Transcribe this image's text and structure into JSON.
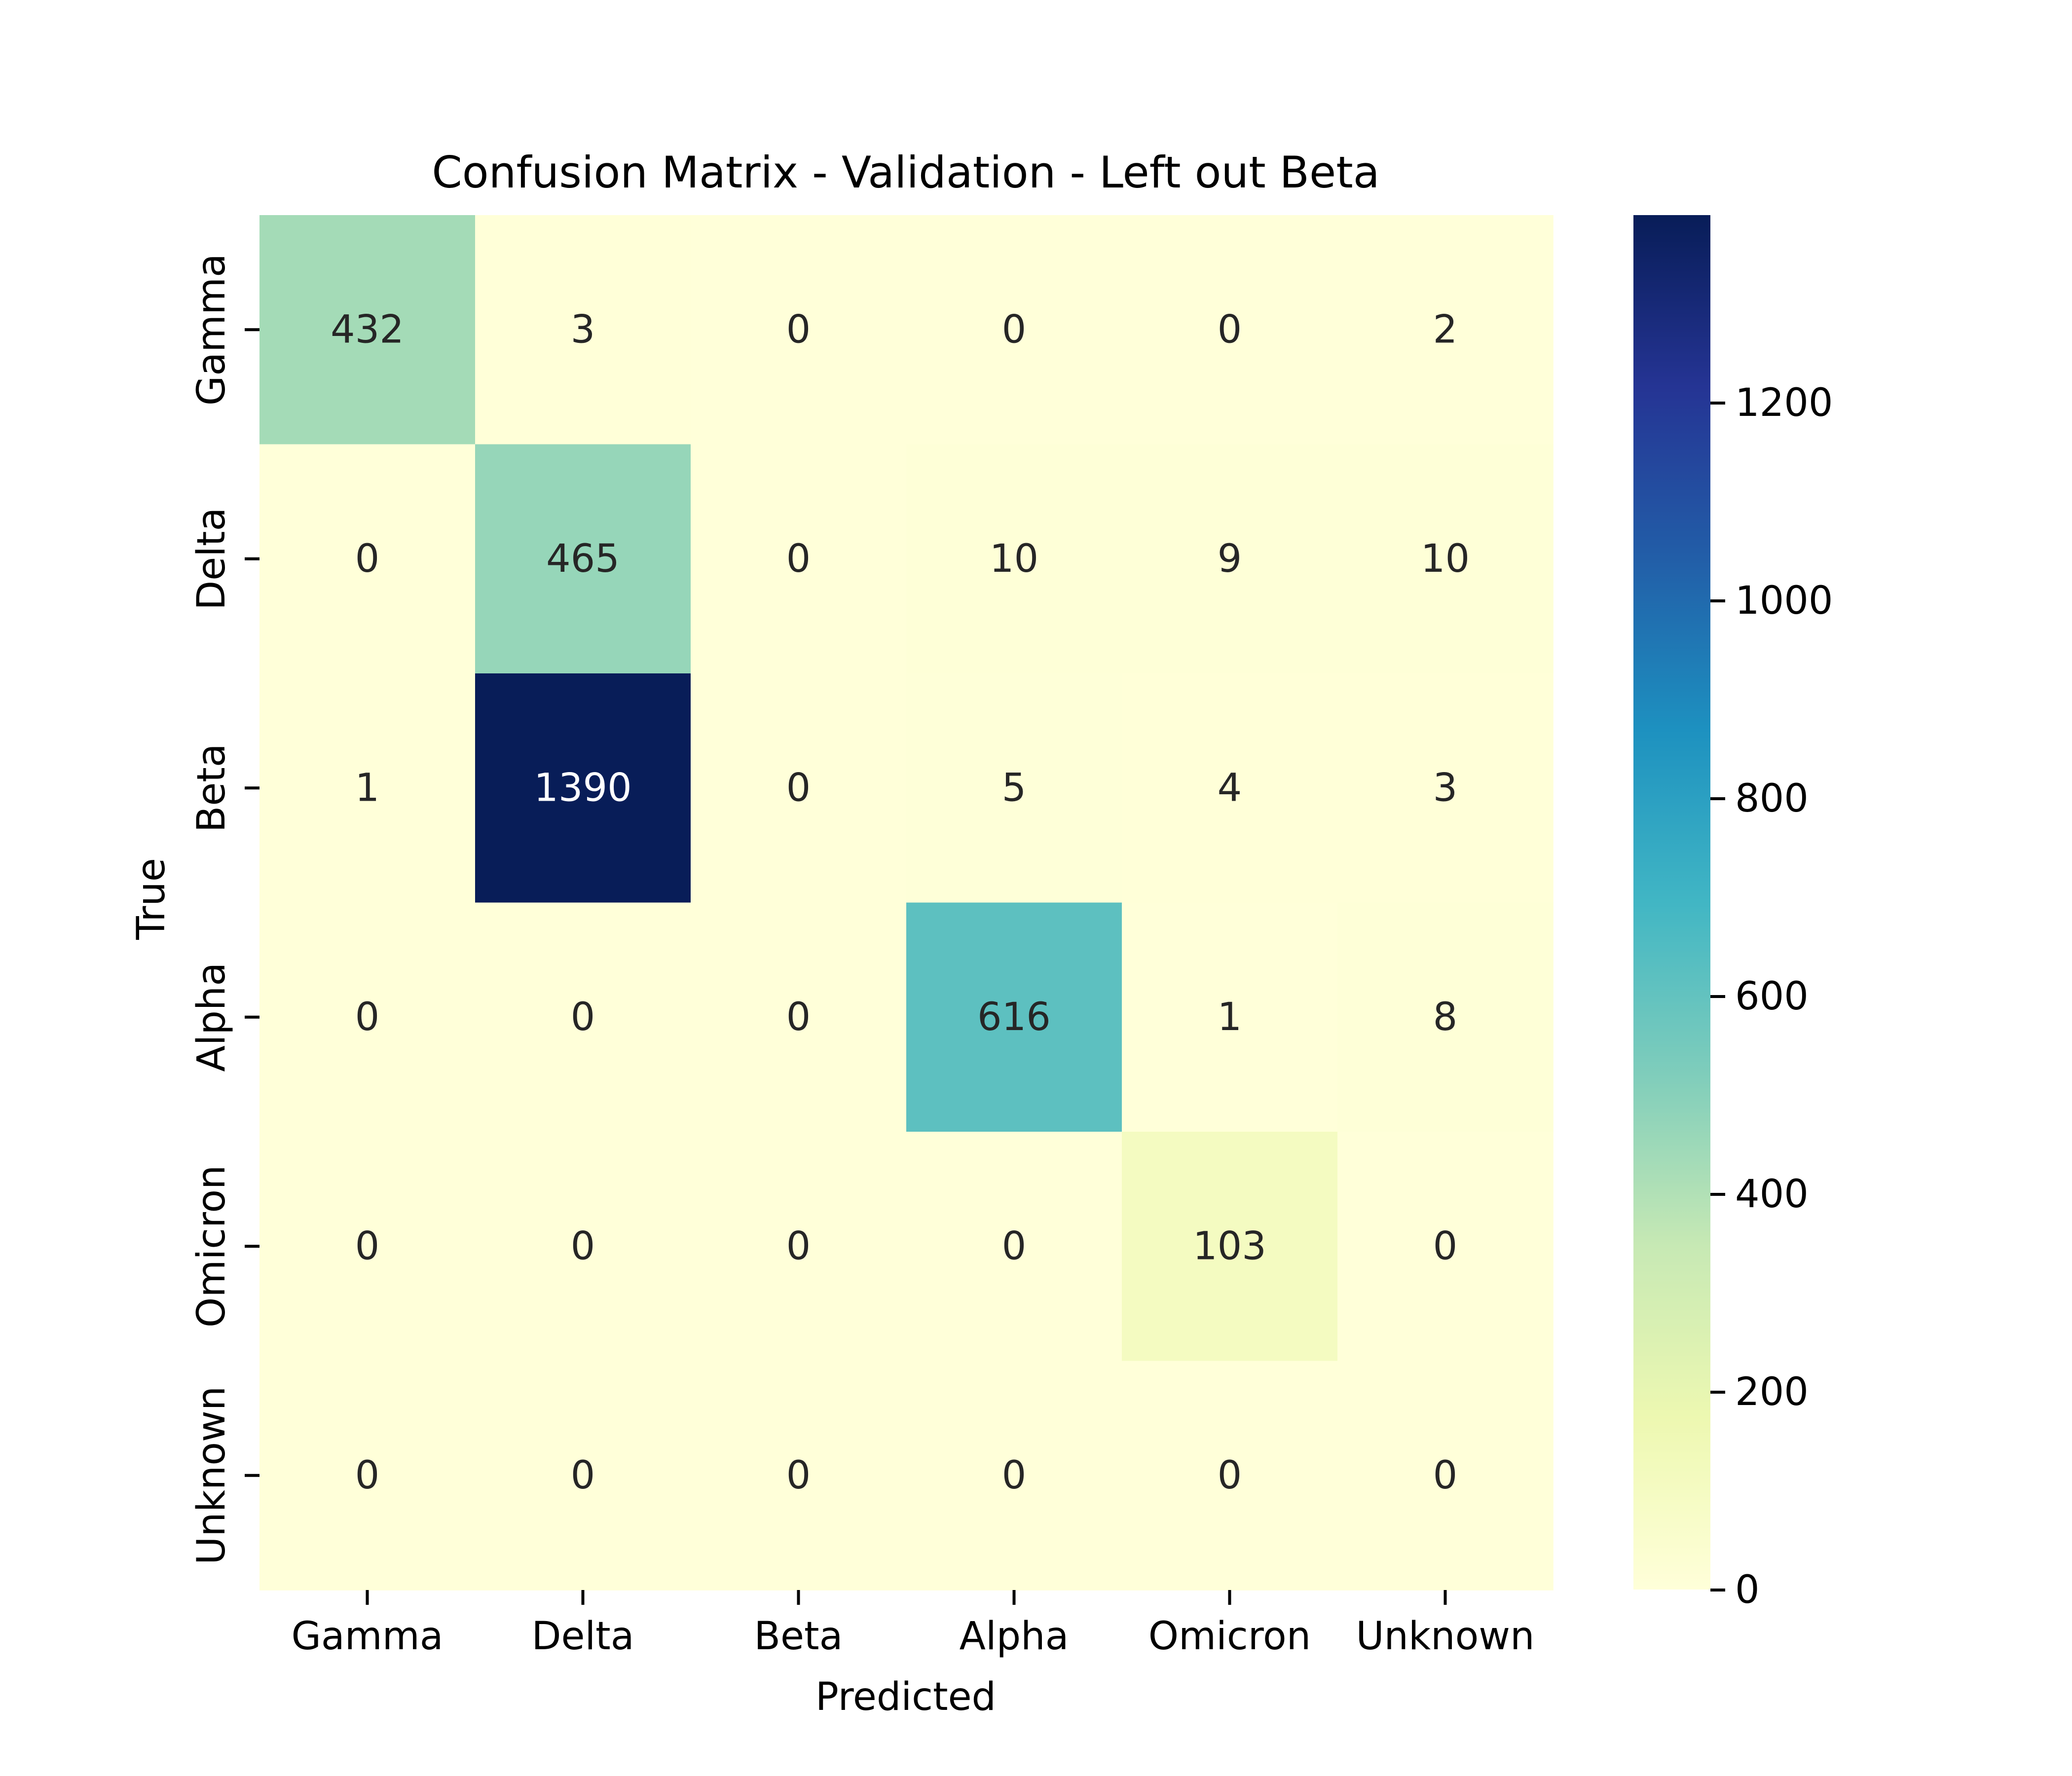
{
  "chart_data": {
    "type": "heatmap",
    "title": "Confusion Matrix - Validation - Left out Beta",
    "xlabel": "Predicted",
    "ylabel": "True",
    "x_categories": [
      "Gamma",
      "Delta",
      "Beta",
      "Alpha",
      "Omicron",
      "Unknown"
    ],
    "y_categories": [
      "Gamma",
      "Delta",
      "Beta",
      "Alpha",
      "Omicron",
      "Unknown"
    ],
    "values": [
      [
        432,
        3,
        0,
        0,
        0,
        2
      ],
      [
        0,
        465,
        0,
        10,
        9,
        10
      ],
      [
        1,
        1390,
        0,
        5,
        4,
        3
      ],
      [
        0,
        0,
        0,
        616,
        1,
        8
      ],
      [
        0,
        0,
        0,
        0,
        103,
        0
      ],
      [
        0,
        0,
        0,
        0,
        0,
        0
      ]
    ],
    "colormap": "YlGnBu",
    "colorbar": {
      "vmin": 0,
      "vmax": 1390,
      "ticks": [
        0,
        200,
        400,
        600,
        800,
        1000,
        1200
      ],
      "tick_labels": [
        "0",
        "200",
        "400",
        "600",
        "800",
        "1000",
        "1200"
      ]
    },
    "colormap_stops": [
      "#ffffd9",
      "#edf8b1",
      "#c7e9b4",
      "#7fcdbb",
      "#41b6c4",
      "#1d91c0",
      "#225ea8",
      "#253494",
      "#081d58"
    ],
    "grid": false,
    "legend": "none"
  }
}
